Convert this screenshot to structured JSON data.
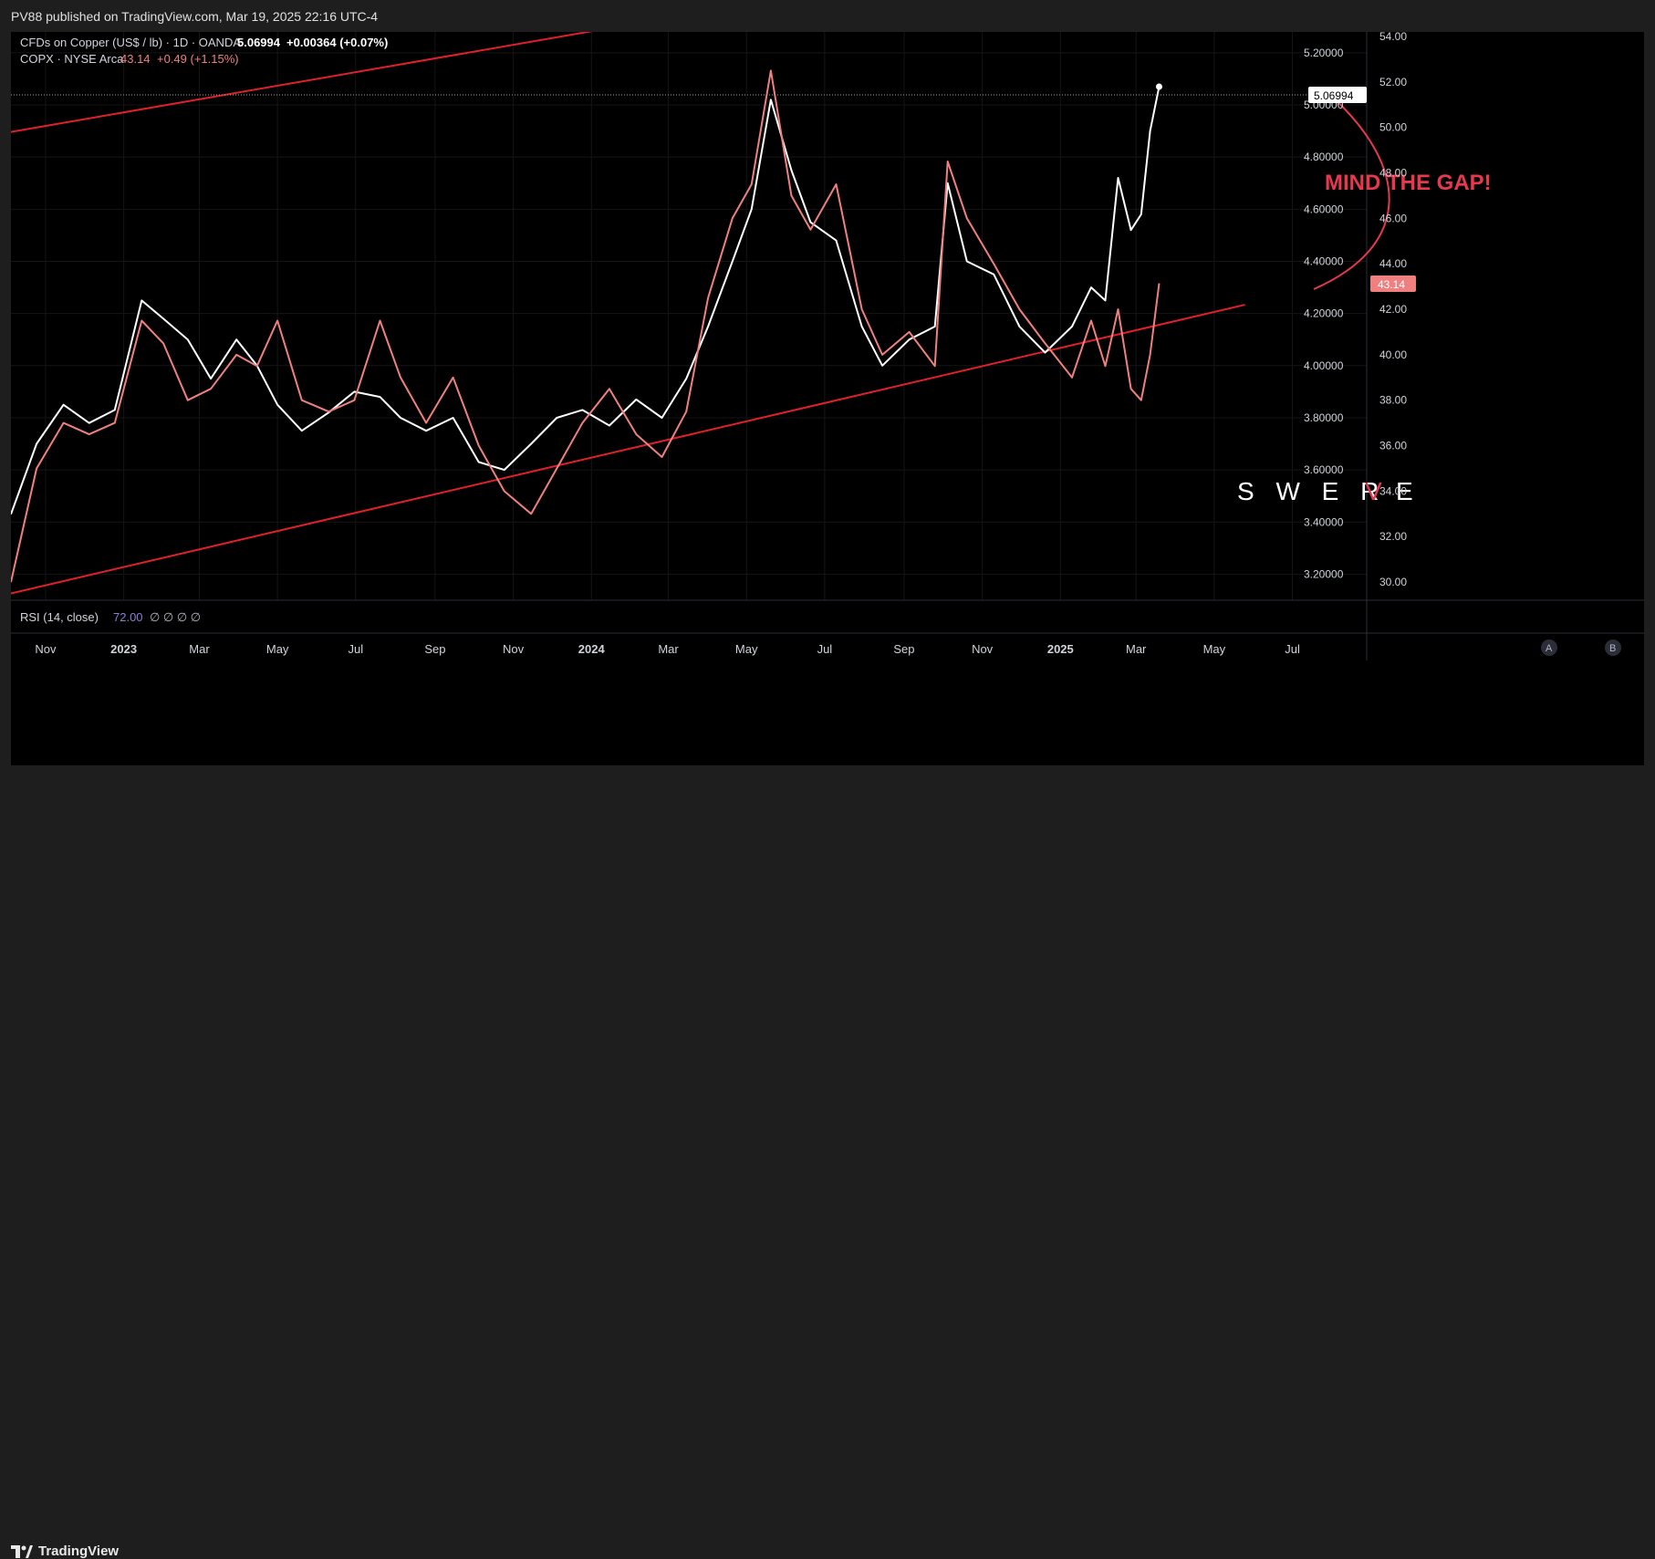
{
  "header": {
    "published_by": "PV88 published on TradingView.com, Mar 19, 2025 22:16 UTC-4"
  },
  "legend": {
    "main_symbol": "CFDs on Copper (US$ / lb) · 1D · OANDA",
    "main_value": "5.06994",
    "main_change": "+0.00364 (+0.07%)",
    "compare_symbol": "COPX · NYSE Arca",
    "compare_value": "43.14",
    "compare_change": "+0.49 (+1.15%)"
  },
  "rsi_pane": {
    "label": "RSI (14, close)",
    "value": "72.00",
    "extra": "∅ ∅ ∅ ∅"
  },
  "price_badges": {
    "copper_last": "5.06994",
    "copx_last": "43.14"
  },
  "annotation": {
    "text": "MIND THE GAP!",
    "color": "#e8384f"
  },
  "watermark": {
    "text_before": "S W E R",
    "text_accent": "V",
    "text_after": "E"
  },
  "scale_buttons": {
    "a": "A",
    "b": "B"
  },
  "footer": {
    "brand": "TradingView"
  },
  "colors": {
    "copper": "#ffffff",
    "copx": "#f08080",
    "trendline": "#e0202a",
    "background": "#000000"
  },
  "chart_data": {
    "type": "line",
    "x_ticks": [
      "Nov",
      "2023",
      "Mar",
      "May",
      "Jul",
      "Sep",
      "Nov",
      "2024",
      "Mar",
      "May",
      "Jul",
      "Sep",
      "Nov",
      "2025",
      "Mar",
      "May",
      "Jul"
    ],
    "left_axis_ticks": [
      "5.20000",
      "5.00000",
      "4.80000",
      "4.60000",
      "4.40000",
      "4.20000",
      "4.00000",
      "3.80000",
      "3.60000",
      "3.40000",
      "3.20000"
    ],
    "right_axis_ticks": [
      "54.00",
      "52.00",
      "50.00",
      "48.00",
      "46.00",
      "44.00",
      "42.00",
      "40.00",
      "38.00",
      "36.00",
      "34.00",
      "32.00",
      "30.00"
    ],
    "left_ylim": [
      3.1,
      5.28
    ],
    "right_ylim": [
      29.2,
      54.2
    ],
    "series": [
      {
        "name": "CFDs on Copper (US$ / lb)",
        "axis": "left",
        "x": [
          "2022-10-05",
          "2022-10-25",
          "2022-11-15",
          "2022-12-05",
          "2022-12-25",
          "2023-01-15",
          "2023-02-01",
          "2023-02-20",
          "2023-03-10",
          "2023-03-30",
          "2023-04-15",
          "2023-05-01",
          "2023-05-20",
          "2023-06-10",
          "2023-06-30",
          "2023-07-20",
          "2023-08-05",
          "2023-08-25",
          "2023-09-15",
          "2023-10-05",
          "2023-10-25",
          "2023-11-15",
          "2023-12-05",
          "2023-12-25",
          "2024-01-15",
          "2024-02-05",
          "2024-02-25",
          "2024-03-15",
          "2024-04-01",
          "2024-04-20",
          "2024-05-05",
          "2024-05-20",
          "2024-06-05",
          "2024-06-20",
          "2024-07-10",
          "2024-07-30",
          "2024-08-15",
          "2024-09-05",
          "2024-09-25",
          "2024-10-05",
          "2024-10-20",
          "2024-11-10",
          "2024-11-30",
          "2024-12-20",
          "2025-01-10",
          "2025-01-25",
          "2025-02-05",
          "2025-02-15",
          "2025-02-25",
          "2025-03-05",
          "2025-03-12",
          "2025-03-19"
        ],
        "values": [
          3.43,
          3.7,
          3.85,
          3.78,
          3.83,
          4.25,
          4.18,
          4.1,
          3.95,
          4.1,
          4.0,
          3.85,
          3.75,
          3.82,
          3.9,
          3.88,
          3.8,
          3.75,
          3.8,
          3.63,
          3.6,
          3.7,
          3.8,
          3.83,
          3.77,
          3.87,
          3.8,
          3.95,
          4.15,
          4.4,
          4.6,
          5.02,
          4.75,
          4.55,
          4.48,
          4.15,
          4.0,
          4.1,
          4.15,
          4.7,
          4.4,
          4.35,
          4.15,
          4.05,
          4.15,
          4.3,
          4.25,
          4.72,
          4.52,
          4.58,
          4.9,
          5.07
        ]
      },
      {
        "name": "COPX",
        "axis": "right",
        "x": [
          "2022-10-05",
          "2022-10-25",
          "2022-11-15",
          "2022-12-05",
          "2022-12-25",
          "2023-01-15",
          "2023-02-01",
          "2023-02-20",
          "2023-03-10",
          "2023-03-30",
          "2023-04-15",
          "2023-05-01",
          "2023-05-20",
          "2023-06-10",
          "2023-06-30",
          "2023-07-20",
          "2023-08-05",
          "2023-08-25",
          "2023-09-15",
          "2023-10-05",
          "2023-10-25",
          "2023-11-15",
          "2023-12-05",
          "2023-12-25",
          "2024-01-15",
          "2024-02-05",
          "2024-02-25",
          "2024-03-15",
          "2024-04-01",
          "2024-04-20",
          "2024-05-05",
          "2024-05-20",
          "2024-06-05",
          "2024-06-20",
          "2024-07-10",
          "2024-07-30",
          "2024-08-15",
          "2024-09-05",
          "2024-09-25",
          "2024-10-05",
          "2024-10-20",
          "2024-11-10",
          "2024-11-30",
          "2024-12-20",
          "2025-01-10",
          "2025-01-25",
          "2025-02-05",
          "2025-02-15",
          "2025-02-25",
          "2025-03-05",
          "2025-03-12",
          "2025-03-19"
        ],
        "values": [
          30.0,
          35.0,
          37.0,
          36.5,
          37.0,
          41.5,
          40.5,
          38.0,
          38.5,
          40.0,
          39.5,
          41.5,
          38.0,
          37.5,
          38.0,
          41.5,
          39.0,
          37.0,
          39.0,
          36.0,
          34.0,
          33.0,
          35.0,
          37.0,
          38.5,
          36.5,
          35.5,
          37.5,
          42.5,
          46.0,
          47.5,
          52.5,
          47.0,
          45.5,
          47.5,
          42.0,
          40.0,
          41.0,
          39.5,
          48.5,
          46.0,
          44.0,
          42.0,
          40.5,
          39.0,
          41.5,
          39.5,
          42.0,
          38.5,
          38.0,
          40.0,
          43.14
        ]
      }
    ],
    "trendlines": [
      {
        "from": [
          "2022-10-05",
          49.8
        ],
        "to": [
          "2024-05-10",
          55.5
        ]
      },
      {
        "from": [
          "2022-10-05",
          29.5
        ],
        "to": [
          "2025-05-25",
          42.2
        ]
      }
    ]
  }
}
